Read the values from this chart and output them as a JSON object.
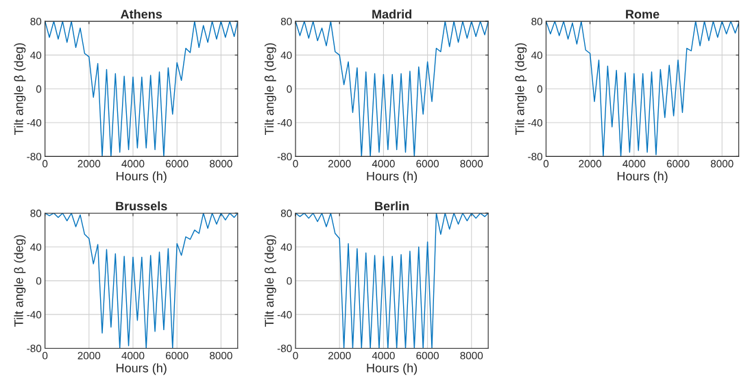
{
  "chart_data": [
    {
      "type": "line",
      "title": "Athens",
      "xlabel": "Hours (h)",
      "ylabel": "Tilt angle β (deg)",
      "xlim": [
        0,
        8760
      ],
      "xticks": [
        0,
        2000,
        4000,
        6000,
        8000
      ],
      "ylim": [
        -80,
        80
      ],
      "yticks": [
        -80,
        -40,
        0,
        40,
        80
      ],
      "grid": true,
      "x": [
        0,
        200,
        400,
        600,
        800,
        1000,
        1200,
        1400,
        1600,
        1800,
        2000,
        2200,
        2400,
        2600,
        2800,
        3000,
        3200,
        3400,
        3600,
        3800,
        4000,
        4200,
        4400,
        4600,
        4800,
        5000,
        5200,
        5400,
        5600,
        5800,
        6000,
        6200,
        6400,
        6600,
        6800,
        7000,
        7200,
        7400,
        7600,
        7800,
        8000,
        8200,
        8400,
        8600,
        8760
      ],
      "series": [
        {
          "color": "#0072bd",
          "values": [
            80,
            61,
            80,
            59,
            80,
            55,
            80,
            49,
            72,
            42,
            38,
            -10,
            30,
            -80,
            23,
            -80,
            18,
            -75,
            15,
            -72,
            14,
            -70,
            14,
            -70,
            16,
            -72,
            20,
            -80,
            25,
            -30,
            31,
            10,
            48,
            43,
            80,
            49,
            75,
            55,
            80,
            59,
            80,
            61,
            80,
            62,
            80
          ]
        }
      ]
    },
    {
      "type": "line",
      "title": "Madrid",
      "xlabel": "Hours (h)",
      "ylabel": "Tilt angle β (deg)",
      "xlim": [
        0,
        8760
      ],
      "xticks": [
        0,
        2000,
        4000,
        6000,
        8000
      ],
      "ylim": [
        -80,
        80
      ],
      "yticks": [
        -80,
        -40,
        0,
        40,
        80
      ],
      "grid": true,
      "x": [
        0,
        200,
        400,
        600,
        800,
        1000,
        1200,
        1400,
        1600,
        1800,
        2000,
        2200,
        2400,
        2600,
        2800,
        3000,
        3200,
        3400,
        3600,
        3800,
        4000,
        4200,
        4400,
        4600,
        4800,
        5000,
        5200,
        5400,
        5600,
        5800,
        6000,
        6200,
        6400,
        6600,
        6800,
        7000,
        7200,
        7400,
        7600,
        7800,
        8000,
        8200,
        8400,
        8600,
        8760
      ],
      "series": [
        {
          "color": "#0072bd",
          "values": [
            80,
            63,
            80,
            60,
            80,
            57,
            72,
            51,
            80,
            44,
            40,
            5,
            32,
            -28,
            25,
            -80,
            20,
            -80,
            18,
            -75,
            17,
            -72,
            17,
            -72,
            18,
            -75,
            21,
            -80,
            26,
            -30,
            32,
            -15,
            48,
            44,
            80,
            50,
            80,
            55,
            80,
            60,
            80,
            62,
            80,
            64,
            80
          ]
        }
      ]
    },
    {
      "type": "line",
      "title": "Rome",
      "xlabel": "Hours (h)",
      "ylabel": "Tilt angle β (deg)",
      "xlim": [
        0,
        8760
      ],
      "xticks": [
        0,
        2000,
        4000,
        6000,
        8000
      ],
      "ylim": [
        -80,
        80
      ],
      "yticks": [
        -80,
        -40,
        0,
        40,
        80
      ],
      "grid": true,
      "x": [
        0,
        200,
        400,
        600,
        800,
        1000,
        1200,
        1400,
        1600,
        1800,
        2000,
        2200,
        2400,
        2600,
        2800,
        3000,
        3200,
        3400,
        3600,
        3800,
        4000,
        4200,
        4400,
        4600,
        4800,
        5000,
        5200,
        5400,
        5600,
        5800,
        6000,
        6200,
        6400,
        6600,
        6800,
        7000,
        7200,
        7400,
        7600,
        7800,
        8000,
        8200,
        8400,
        8600,
        8760
      ],
      "series": [
        {
          "color": "#0072bd",
          "values": [
            80,
            65,
            80,
            63,
            80,
            59,
            78,
            53,
            80,
            46,
            42,
            -15,
            34,
            -80,
            27,
            -45,
            22,
            -80,
            19,
            -75,
            18,
            -73,
            18,
            -75,
            20,
            -78,
            23,
            -34,
            28,
            -32,
            34,
            -28,
            48,
            45,
            80,
            51,
            80,
            57,
            80,
            61,
            80,
            65,
            80,
            66,
            78
          ]
        }
      ]
    },
    {
      "type": "line",
      "title": "Brussels",
      "xlabel": "Hours (h)",
      "ylabel": "Tilt angle β (deg)",
      "xlim": [
        0,
        8760
      ],
      "xticks": [
        0,
        2000,
        4000,
        6000,
        8000
      ],
      "ylim": [
        -80,
        80
      ],
      "yticks": [
        -80,
        -40,
        0,
        40,
        80
      ],
      "grid": true,
      "x": [
        0,
        200,
        400,
        600,
        800,
        1000,
        1200,
        1400,
        1600,
        1800,
        2000,
        2200,
        2400,
        2600,
        2800,
        3000,
        3200,
        3400,
        3600,
        3800,
        4000,
        4200,
        4400,
        4600,
        4800,
        5000,
        5200,
        5400,
        5600,
        5800,
        6000,
        6200,
        6400,
        6600,
        6800,
        7000,
        7200,
        7400,
        7600,
        7800,
        8000,
        8200,
        8400,
        8600,
        8760
      ],
      "series": [
        {
          "color": "#0072bd",
          "values": [
            80,
            77,
            80,
            75,
            80,
            71,
            80,
            64,
            78,
            55,
            50,
            20,
            43,
            -62,
            37,
            -55,
            32,
            -80,
            29,
            -77,
            28,
            -47,
            28,
            -80,
            30,
            -60,
            34,
            -58,
            38,
            -80,
            44,
            30,
            52,
            49,
            60,
            56,
            80,
            62,
            80,
            67,
            80,
            72,
            80,
            75,
            80
          ]
        }
      ]
    },
    {
      "type": "line",
      "title": "Berlin",
      "xlabel": "Hours (h)",
      "ylabel": "Tilt angle β (deg)",
      "xlim": [
        0,
        8760
      ],
      "xticks": [
        0,
        2000,
        4000,
        6000,
        8000
      ],
      "ylim": [
        -80,
        80
      ],
      "yticks": [
        -80,
        -40,
        0,
        40,
        80
      ],
      "grid": true,
      "x": [
        0,
        200,
        400,
        600,
        800,
        1000,
        1200,
        1400,
        1600,
        1800,
        2000,
        2200,
        2400,
        2600,
        2800,
        3000,
        3200,
        3400,
        3600,
        3800,
        4000,
        4200,
        4400,
        4600,
        4800,
        5000,
        5200,
        5400,
        5600,
        5800,
        6000,
        6200,
        6400,
        6600,
        6800,
        7000,
        7200,
        7400,
        7600,
        7800,
        8000,
        8200,
        8400,
        8600,
        8760
      ],
      "series": [
        {
          "color": "#0072bd",
          "values": [
            80,
            76,
            80,
            74,
            80,
            70,
            80,
            64,
            80,
            56,
            50,
            -80,
            44,
            -80,
            38,
            -80,
            33,
            -80,
            30,
            -80,
            29,
            -80,
            29,
            -80,
            31,
            -80,
            35,
            -80,
            40,
            -80,
            46,
            -80,
            80,
            55,
            80,
            61,
            80,
            67,
            80,
            71,
            80,
            74,
            80,
            76,
            80
          ]
        }
      ]
    }
  ]
}
